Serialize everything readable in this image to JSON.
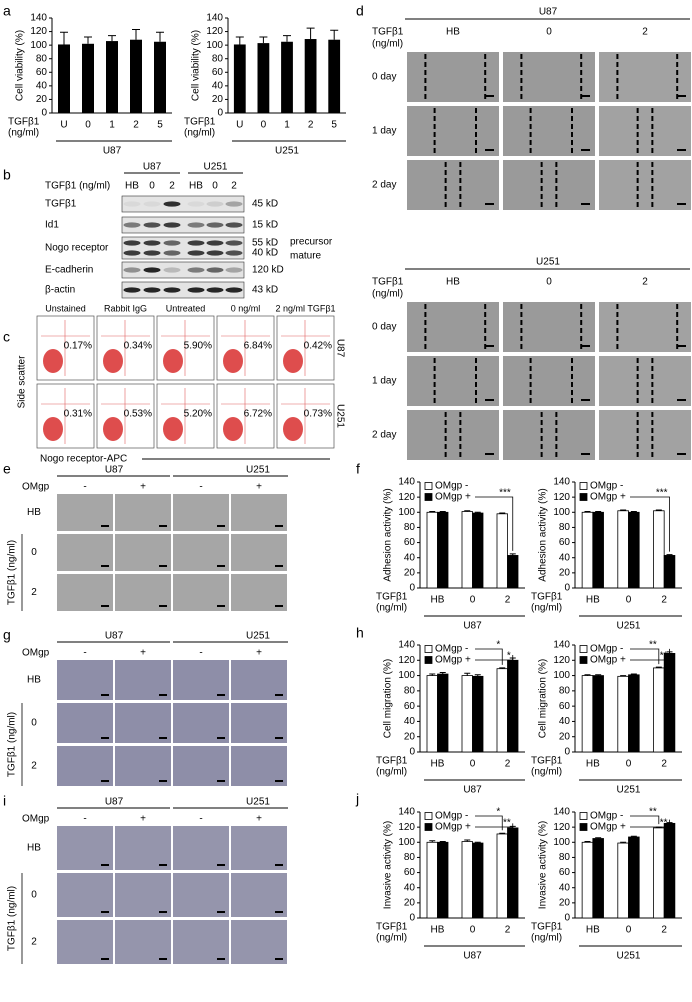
{
  "letters": [
    "a",
    "b",
    "c",
    "d",
    "e",
    "f",
    "g",
    "h",
    "i",
    "j"
  ],
  "chart_data": [
    {
      "type": "bar",
      "ylabel": "Cell viability (%)",
      "xlabel": [
        "TGFβ1",
        "(ng/ml)"
      ],
      "group": "U87",
      "categories": [
        "U",
        "0",
        "1",
        "2",
        "5"
      ],
      "values": [
        101,
        102,
        106,
        108,
        105
      ],
      "errors": [
        18,
        10,
        8,
        15,
        14
      ],
      "color": "#000000",
      "ylim": [
        0,
        140
      ],
      "yticks": [
        0,
        20,
        40,
        60,
        80,
        100,
        120,
        140
      ]
    },
    {
      "type": "bar",
      "ylabel": "Cell viability (%)",
      "xlabel": [
        "TGFβ1",
        "(ng/ml)"
      ],
      "group": "U251",
      "categories": [
        "U",
        "0",
        "1",
        "2",
        "5"
      ],
      "values": [
        101,
        103,
        105,
        109,
        108
      ],
      "errors": [
        11,
        9,
        9,
        16,
        14
      ],
      "color": "#000000",
      "ylim": [
        0,
        140
      ],
      "yticks": [
        0,
        20,
        40,
        60,
        80,
        100,
        120,
        140
      ]
    },
    {
      "type": "grouped_bar",
      "ylabel": "Adhesion activity (%)",
      "xlabel": [
        "TGFβ1",
        "(ng/ml)"
      ],
      "group": "U87",
      "categories": [
        "HB",
        "0",
        "2"
      ],
      "ylim": [
        0,
        140
      ],
      "yticks": [
        0,
        20,
        40,
        60,
        80,
        100,
        120,
        140
      ],
      "series": [
        {
          "name": "OMgp -",
          "color": "#ffffff",
          "values": [
            100,
            101,
            98
          ],
          "errors": [
            1,
            1,
            1
          ]
        },
        {
          "name": "OMgp +",
          "color": "#000000",
          "values": [
            100,
            99,
            43
          ],
          "errors": [
            1,
            1,
            2
          ],
          "annotation": "***"
        }
      ]
    },
    {
      "type": "grouped_bar",
      "ylabel": "Adhesion activity (%)",
      "xlabel": [
        "TGFβ1",
        "(ng/ml)"
      ],
      "group": "U251",
      "categories": [
        "HB",
        "0",
        "2"
      ],
      "ylim": [
        0,
        140
      ],
      "yticks": [
        0,
        20,
        40,
        60,
        80,
        100,
        120,
        140
      ],
      "series": [
        {
          "name": "OMgp -",
          "color": "#ffffff",
          "values": [
            100,
            102,
            102
          ],
          "errors": [
            1,
            1,
            1
          ]
        },
        {
          "name": "OMgp +",
          "color": "#000000",
          "values": [
            100,
            100,
            43
          ],
          "errors": [
            1,
            1,
            1
          ],
          "annotation": "***"
        }
      ]
    },
    {
      "type": "grouped_bar",
      "ylabel": "Cell migration (%)",
      "xlabel": [
        "TGFβ1",
        "(ng/ml)"
      ],
      "group": "U87",
      "categories": [
        "HB",
        "0",
        "2"
      ],
      "ylim": [
        0,
        140
      ],
      "yticks": [
        0,
        20,
        40,
        60,
        80,
        100,
        120,
        140
      ],
      "series": [
        {
          "name": "OMgp -",
          "color": "#ffffff",
          "values": [
            100,
            100,
            109
          ],
          "errors": [
            2,
            3,
            1
          ],
          "annotation": "*"
        },
        {
          "name": "OMgp +",
          "color": "#000000",
          "values": [
            102,
            99,
            120
          ],
          "errors": [
            2,
            2,
            3
          ],
          "annotation": "*"
        }
      ]
    },
    {
      "type": "grouped_bar",
      "ylabel": "Cell migration (%)",
      "xlabel": [
        "TGFβ1",
        "(ng/ml)"
      ],
      "group": "U251",
      "categories": [
        "HB",
        "0",
        "2"
      ],
      "ylim": [
        0,
        140
      ],
      "yticks": [
        0,
        20,
        40,
        60,
        80,
        100,
        120,
        140
      ],
      "series": [
        {
          "name": "OMgp -",
          "color": "#ffffff",
          "values": [
            100,
            99,
            110
          ],
          "errors": [
            1,
            1,
            1
          ],
          "annotation": "**"
        },
        {
          "name": "OMgp +",
          "color": "#000000",
          "values": [
            100,
            101,
            129
          ],
          "errors": [
            1,
            1,
            2
          ],
          "annotation": "**"
        }
      ]
    },
    {
      "type": "grouped_bar",
      "ylabel": "Invasive activity (%)",
      "xlabel": [
        "TGFβ1",
        "(ng/ml)"
      ],
      "group": "U87",
      "categories": [
        "HB",
        "0",
        "2"
      ],
      "ylim": [
        0,
        140
      ],
      "yticks": [
        0,
        20,
        40,
        60,
        80,
        100,
        120,
        140
      ],
      "series": [
        {
          "name": "OMgp -",
          "color": "#ffffff",
          "values": [
            100,
            101,
            111
          ],
          "errors": [
            2,
            2,
            1
          ],
          "annotation": "*"
        },
        {
          "name": "OMgp +",
          "color": "#000000",
          "values": [
            100,
            99,
            119
          ],
          "errors": [
            1,
            1,
            2
          ],
          "annotation": "**"
        }
      ]
    },
    {
      "type": "grouped_bar",
      "ylabel": "Invasive activity (%)",
      "xlabel": [
        "TGFβ1",
        "(ng/ml)"
      ],
      "group": "U251",
      "categories": [
        "HB",
        "0",
        "2"
      ],
      "ylim": [
        0,
        140
      ],
      "yticks": [
        0,
        20,
        40,
        60,
        80,
        100,
        120,
        140
      ],
      "series": [
        {
          "name": "OMgp -",
          "color": "#ffffff",
          "values": [
            100,
            99,
            119
          ],
          "errors": [
            1,
            1,
            1
          ],
          "annotation": "**"
        },
        {
          "name": "OMgp +",
          "color": "#000000",
          "values": [
            105,
            107,
            125
          ],
          "errors": [
            1,
            1,
            1
          ],
          "annotation": "**"
        }
      ]
    }
  ],
  "panels": {
    "b": {
      "groups": [
        "U87",
        "U251"
      ],
      "dose_label": "TGFβ1 (ng/ml)",
      "lanes": [
        "HB",
        "0",
        "2",
        "HB",
        "0",
        "2"
      ],
      "rows": [
        {
          "label": "TGFβ1",
          "sizes": [
            "45 kD"
          ]
        },
        {
          "label": "Id1",
          "sizes": [
            "15 kD"
          ]
        },
        {
          "label": "Nogo receptor",
          "sizes": [
            "55 kD",
            "40 kD"
          ],
          "notes": [
            "precursor",
            "mature"
          ]
        },
        {
          "label": "E-cadherin",
          "sizes": [
            "120 kD"
          ]
        },
        {
          "label": "β-actin",
          "sizes": [
            "43 kD"
          ]
        }
      ]
    },
    "c": {
      "columns": [
        "Unstained",
        "Rabbit IgG",
        "Untreated",
        "0 ng/ml",
        "2 ng/ml TGFβ1"
      ],
      "rows": [
        {
          "label": "U87",
          "values": [
            "0.17%",
            "0.34%",
            "5.90%",
            "6.84%",
            "0.42%"
          ]
        },
        {
          "label": "U251",
          "values": [
            "0.31%",
            "0.53%",
            "5.20%",
            "6.72%",
            "0.73%"
          ]
        }
      ],
      "ylabel": "Side scatter",
      "xlabel": "Nogo receptor-APC"
    },
    "d": [
      {
        "cell": "U87",
        "dose_label": [
          "TGFβ1",
          "(ng/ml)"
        ],
        "columns": [
          "HB",
          "0",
          "2"
        ],
        "rows": [
          "0 day",
          "1 day",
          "2 day"
        ]
      },
      {
        "cell": "U251",
        "dose_label": [
          "TGFβ1",
          "(ng/ml)"
        ],
        "columns": [
          "HB",
          "0",
          "2"
        ],
        "rows": [
          "0 day",
          "1 day",
          "2 day"
        ]
      }
    ],
    "e": {
      "cells": [
        "U87",
        "U251"
      ],
      "omgp_label": "OMgp",
      "signs": [
        "-",
        "+",
        "-",
        "+"
      ],
      "rows": [
        "HB",
        "0",
        "2"
      ],
      "dose_label": "TGFβ1 (ng/ml)"
    },
    "g": {
      "cells": [
        "U87",
        "U251"
      ],
      "omgp_label": "OMgp",
      "signs": [
        "-",
        "+",
        "-",
        "+"
      ],
      "rows": [
        "HB",
        "0",
        "2"
      ],
      "dose_label": "TGFβ1 (ng/ml)"
    },
    "i": {
      "cells": [
        "U87",
        "U251"
      ],
      "omgp_label": "OMgp",
      "signs": [
        "-",
        "+",
        "-",
        "+"
      ],
      "rows": [
        "HB",
        "0",
        "2"
      ],
      "dose_label": "TGFβ1 (ng/ml)"
    }
  }
}
